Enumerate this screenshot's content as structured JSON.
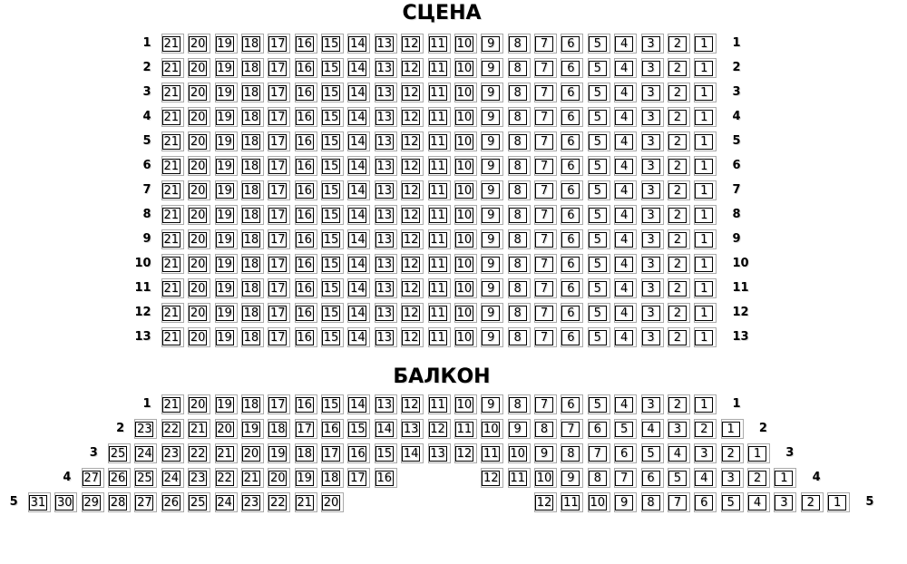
{
  "colors": {
    "background": "#ffffff",
    "text": "#000000",
    "seat_inner_border": "#000000",
    "seat_outer_border": "#aaaaaa"
  },
  "sections": [
    {
      "name": "stage",
      "title": "СЦЕНА",
      "rows": [
        {
          "label": "1",
          "seats": [
            21,
            20,
            19,
            18,
            17,
            16,
            15,
            14,
            13,
            12,
            11,
            10,
            9,
            8,
            7,
            6,
            5,
            4,
            3,
            2,
            1
          ]
        },
        {
          "label": "2",
          "seats": [
            21,
            20,
            19,
            18,
            17,
            16,
            15,
            14,
            13,
            12,
            11,
            10,
            9,
            8,
            7,
            6,
            5,
            4,
            3,
            2,
            1
          ]
        },
        {
          "label": "3",
          "seats": [
            21,
            20,
            19,
            18,
            17,
            16,
            15,
            14,
            13,
            12,
            11,
            10,
            9,
            8,
            7,
            6,
            5,
            4,
            3,
            2,
            1
          ]
        },
        {
          "label": "4",
          "seats": [
            21,
            20,
            19,
            18,
            17,
            16,
            15,
            14,
            13,
            12,
            11,
            10,
            9,
            8,
            7,
            6,
            5,
            4,
            3,
            2,
            1
          ]
        },
        {
          "label": "5",
          "seats": [
            21,
            20,
            19,
            18,
            17,
            16,
            15,
            14,
            13,
            12,
            11,
            10,
            9,
            8,
            7,
            6,
            5,
            4,
            3,
            2,
            1
          ]
        },
        {
          "label": "6",
          "seats": [
            21,
            20,
            19,
            18,
            17,
            16,
            15,
            14,
            13,
            12,
            11,
            10,
            9,
            8,
            7,
            6,
            5,
            4,
            3,
            2,
            1
          ]
        },
        {
          "label": "7",
          "seats": [
            21,
            20,
            19,
            18,
            17,
            16,
            15,
            14,
            13,
            12,
            11,
            10,
            9,
            8,
            7,
            6,
            5,
            4,
            3,
            2,
            1
          ]
        },
        {
          "label": "8",
          "seats": [
            21,
            20,
            19,
            18,
            17,
            16,
            15,
            14,
            13,
            12,
            11,
            10,
            9,
            8,
            7,
            6,
            5,
            4,
            3,
            2,
            1
          ]
        },
        {
          "label": "9",
          "seats": [
            21,
            20,
            19,
            18,
            17,
            16,
            15,
            14,
            13,
            12,
            11,
            10,
            9,
            8,
            7,
            6,
            5,
            4,
            3,
            2,
            1
          ]
        },
        {
          "label": "10",
          "seats": [
            21,
            20,
            19,
            18,
            17,
            16,
            15,
            14,
            13,
            12,
            11,
            10,
            9,
            8,
            7,
            6,
            5,
            4,
            3,
            2,
            1
          ]
        },
        {
          "label": "11",
          "seats": [
            21,
            20,
            19,
            18,
            17,
            16,
            15,
            14,
            13,
            12,
            11,
            10,
            9,
            8,
            7,
            6,
            5,
            4,
            3,
            2,
            1
          ]
        },
        {
          "label": "12",
          "seats": [
            21,
            20,
            19,
            18,
            17,
            16,
            15,
            14,
            13,
            12,
            11,
            10,
            9,
            8,
            7,
            6,
            5,
            4,
            3,
            2,
            1
          ]
        },
        {
          "label": "13",
          "seats": [
            21,
            20,
            19,
            18,
            17,
            16,
            15,
            14,
            13,
            12,
            11,
            10,
            9,
            8,
            7,
            6,
            5,
            4,
            3,
            2,
            1
          ]
        }
      ]
    },
    {
      "name": "balcony",
      "title": "БАЛКОН",
      "rows": [
        {
          "label": "1",
          "seats": [
            21,
            20,
            19,
            18,
            17,
            16,
            15,
            14,
            13,
            12,
            11,
            10,
            9,
            8,
            7,
            6,
            5,
            4,
            3,
            2,
            1
          ]
        },
        {
          "label": "2",
          "seats": [
            23,
            22,
            21,
            20,
            19,
            18,
            17,
            16,
            15,
            14,
            13,
            12,
            11,
            10,
            9,
            8,
            7,
            6,
            5,
            4,
            3,
            2,
            1
          ]
        },
        {
          "label": "3",
          "seats": [
            25,
            24,
            23,
            22,
            21,
            20,
            19,
            18,
            17,
            16,
            15,
            14,
            13,
            12,
            11,
            10,
            9,
            8,
            7,
            6,
            5,
            4,
            3,
            2,
            1
          ]
        },
        {
          "label": "4",
          "seats": [
            27,
            26,
            25,
            24,
            23,
            22,
            21,
            20,
            19,
            18,
            17,
            16,
            null,
            null,
            null,
            12,
            11,
            10,
            9,
            8,
            7,
            6,
            5,
            4,
            3,
            2,
            1
          ]
        },
        {
          "label": "5",
          "seats": [
            31,
            30,
            29,
            28,
            27,
            26,
            25,
            24,
            23,
            22,
            21,
            20,
            null,
            null,
            null,
            null,
            null,
            null,
            null,
            12,
            11,
            10,
            9,
            8,
            7,
            6,
            5,
            4,
            3,
            2,
            1
          ]
        }
      ]
    }
  ]
}
